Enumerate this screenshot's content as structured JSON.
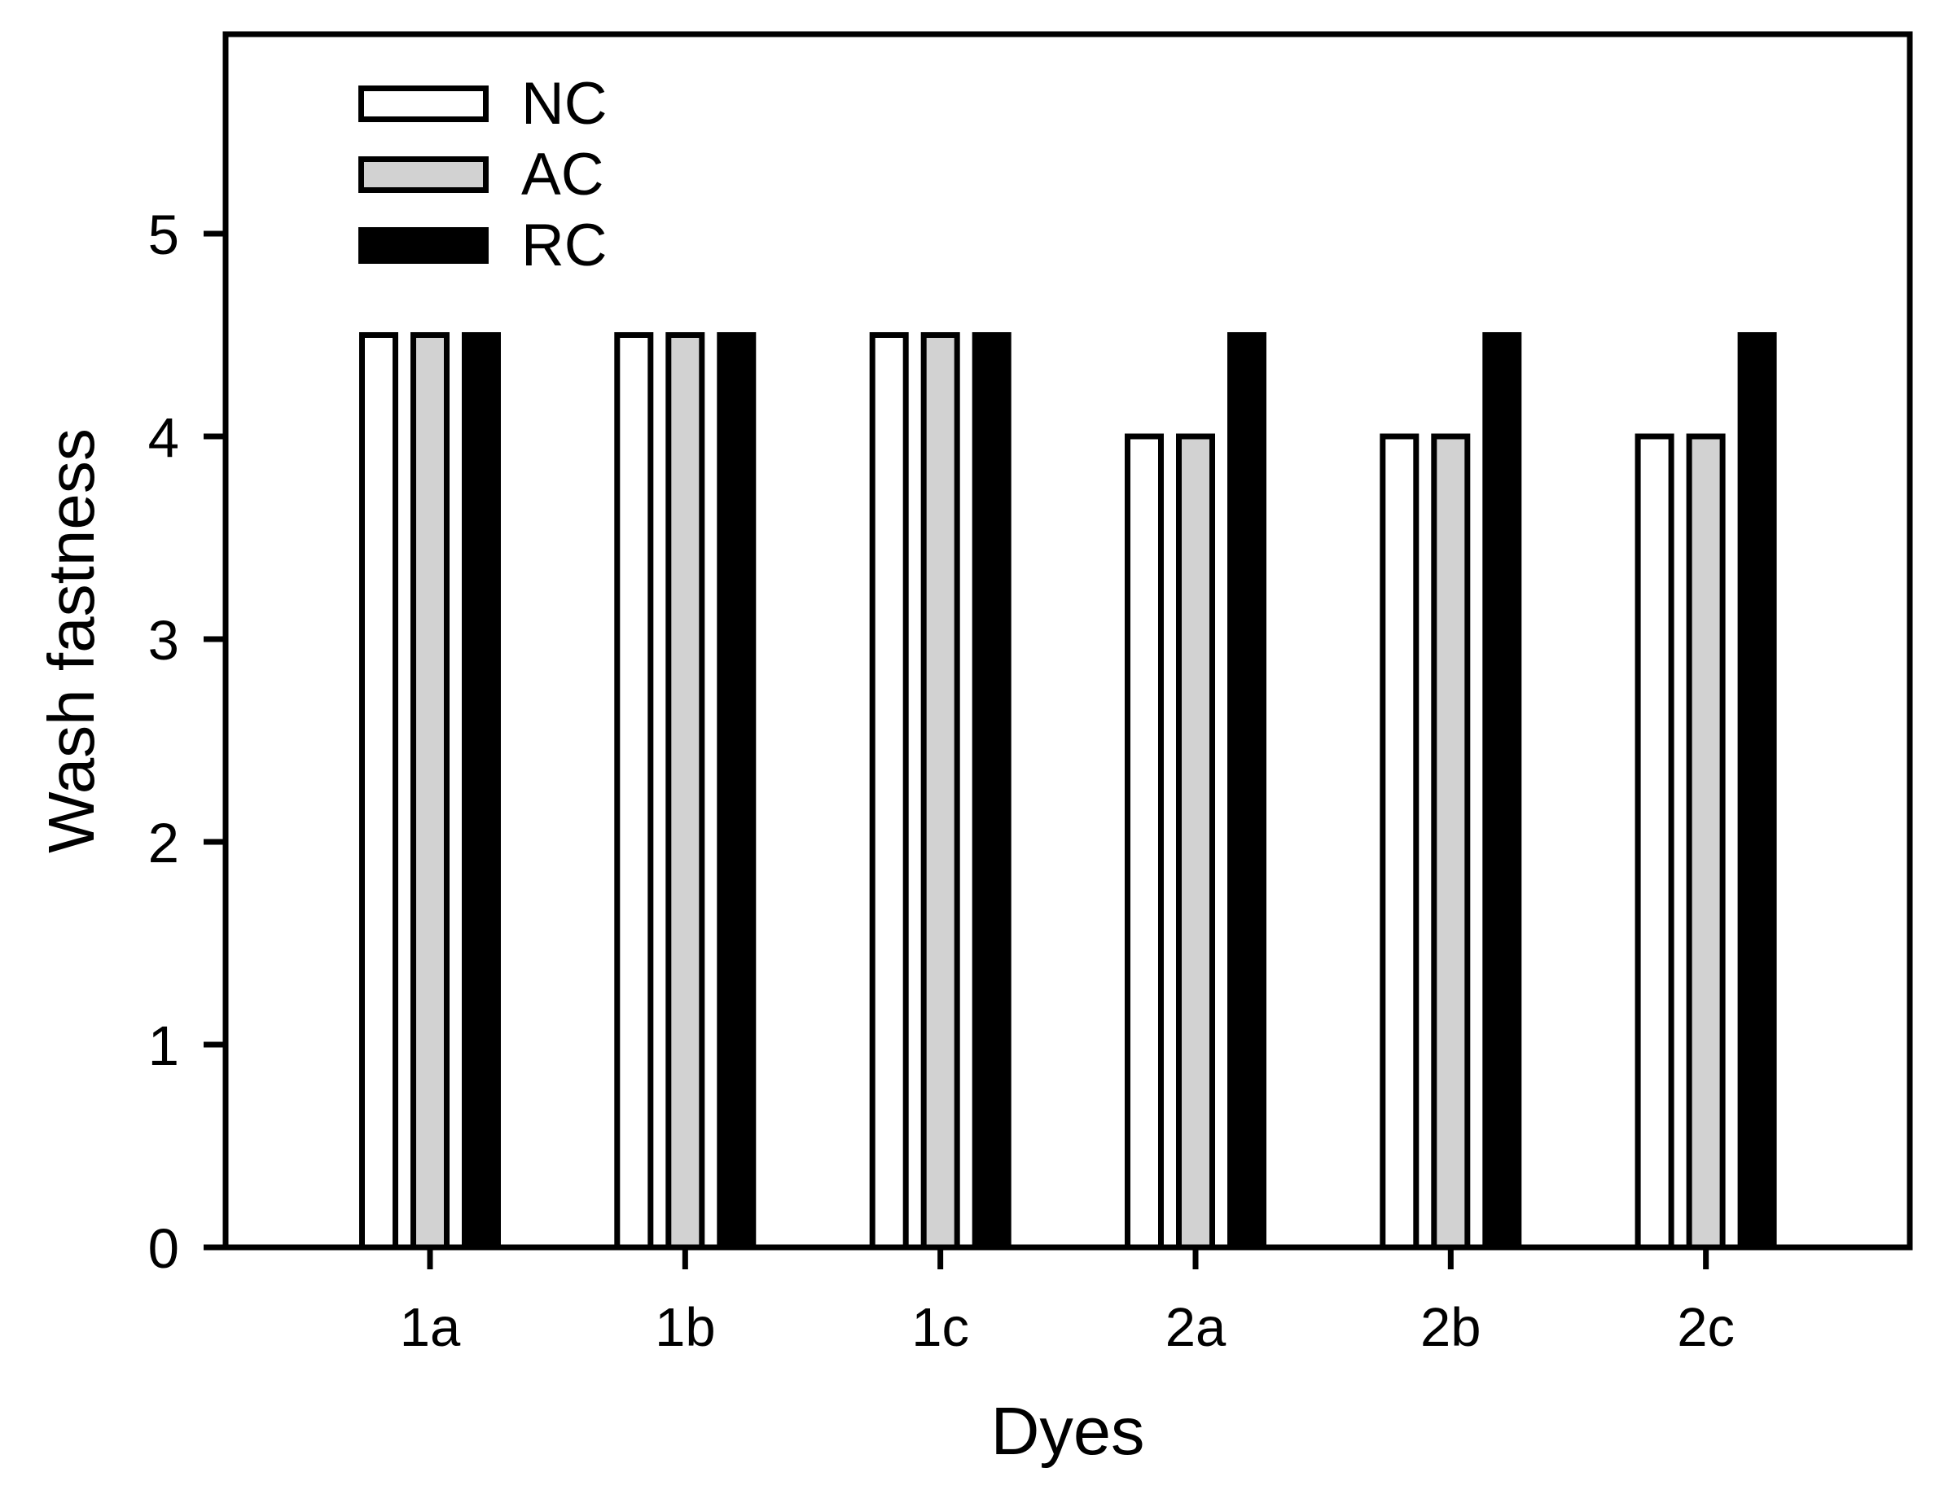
{
  "chart_data": {
    "type": "bar",
    "title": "",
    "xlabel": "Dyes",
    "ylabel": "Wash fastness",
    "categories": [
      "1a",
      "1b",
      "1c",
      "2a",
      "2b",
      "2c"
    ],
    "series": [
      {
        "name": "NC",
        "color": "#ffffff",
        "values": [
          4.5,
          4.5,
          4.5,
          4.0,
          4.0,
          4.0
        ]
      },
      {
        "name": "AC",
        "color": "#d2d2d2",
        "values": [
          4.5,
          4.5,
          4.5,
          4.0,
          4.0,
          4.0
        ]
      },
      {
        "name": "RC",
        "color": "#000000",
        "values": [
          4.5,
          4.5,
          4.5,
          4.5,
          4.5,
          4.5
        ]
      }
    ],
    "ylim": [
      0,
      6
    ],
    "yticks": [
      0,
      1,
      2,
      3,
      4,
      5
    ],
    "grid": false,
    "legend_position": "top-left-inside",
    "bar_outline_color": "#000000",
    "axis_color": "#000000",
    "background_color": "#ffffff"
  }
}
